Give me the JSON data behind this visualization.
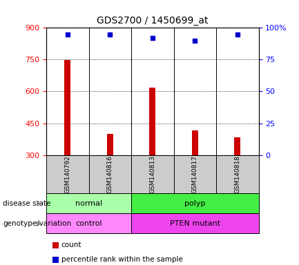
{
  "title": "GDS2700 / 1450699_at",
  "samples": [
    "GSM140792",
    "GSM140816",
    "GSM140813",
    "GSM140817",
    "GSM140818"
  ],
  "counts": [
    748,
    400,
    618,
    415,
    385
  ],
  "percentiles": [
    95,
    95,
    92,
    90,
    95
  ],
  "ylim_left": [
    300,
    900
  ],
  "ylim_right": [
    0,
    100
  ],
  "left_ticks": [
    300,
    450,
    600,
    750,
    900
  ],
  "right_ticks": [
    0,
    25,
    50,
    75,
    100
  ],
  "right_tick_labels": [
    "0",
    "25",
    "50",
    "75",
    "100%"
  ],
  "bar_color": "#cc0000",
  "dot_color": "#0000cc",
  "disease_state_groups": [
    {
      "label": "normal",
      "start": 0,
      "end": 2,
      "color": "#aaffaa"
    },
    {
      "label": "polyp",
      "start": 2,
      "end": 5,
      "color": "#44ee44"
    }
  ],
  "genotype_groups": [
    {
      "label": "control",
      "start": 0,
      "end": 2,
      "color": "#ff88ff"
    },
    {
      "label": "PTEN mutant",
      "start": 2,
      "end": 5,
      "color": "#ee44ee"
    }
  ],
  "row_labels": [
    "disease state",
    "genotype/variation"
  ],
  "legend_items": [
    {
      "label": "count",
      "color": "#cc0000"
    },
    {
      "label": "percentile rank within the sample",
      "color": "#0000cc"
    }
  ],
  "bg_color": "#ffffff",
  "plot_bg_color": "#ffffff",
  "sample_box_color": "#cccccc",
  "bar_width": 0.15
}
